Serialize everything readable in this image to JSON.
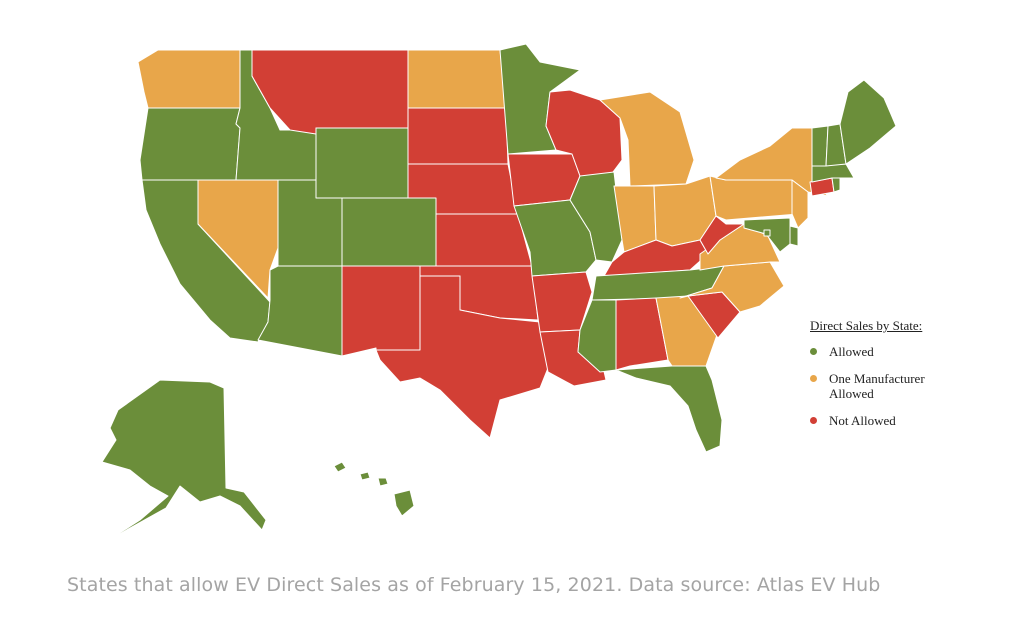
{
  "legend": {
    "title": "Direct Sales by State:",
    "items": [
      {
        "key": "allowed",
        "label": "Allowed",
        "color": "#6b8e3a"
      },
      {
        "key": "one",
        "label": "One Manufacturer Allowed",
        "color": "#e8a64a"
      },
      {
        "key": "not",
        "label": "Not Allowed",
        "color": "#d23f35"
      }
    ]
  },
  "caption": "States that allow EV Direct Sales as of February 15, 2021. Data source: Atlas EV Hub",
  "states": {
    "WA": "one",
    "OR": "allowed",
    "CA": "allowed",
    "NV": "one",
    "ID": "allowed",
    "MT": "not",
    "WY": "allowed",
    "UT": "allowed",
    "AZ": "allowed",
    "CO": "allowed",
    "NM": "not",
    "ND": "one",
    "SD": "not",
    "NE": "not",
    "KS": "not",
    "OK": "not",
    "TX": "not",
    "MN": "allowed",
    "IA": "not",
    "MO": "allowed",
    "AR": "not",
    "LA": "not",
    "WI": "not",
    "IL": "allowed",
    "MI": "one",
    "IN": "one",
    "OH": "one",
    "KY": "not",
    "TN": "allowed",
    "MS": "allowed",
    "AL": "not",
    "GA": "one",
    "FL": "allowed",
    "SC": "not",
    "NC": "one",
    "VA": "one",
    "WV": "not",
    "PA": "one",
    "NY": "one",
    "NJ": "one",
    "DE": "allowed",
    "MD": "allowed",
    "DC": "allowed",
    "CT": "not",
    "RI": "allowed",
    "MA": "allowed",
    "VT": "allowed",
    "NH": "allowed",
    "ME": "allowed",
    "AK": "allowed",
    "HI": "allowed"
  }
}
